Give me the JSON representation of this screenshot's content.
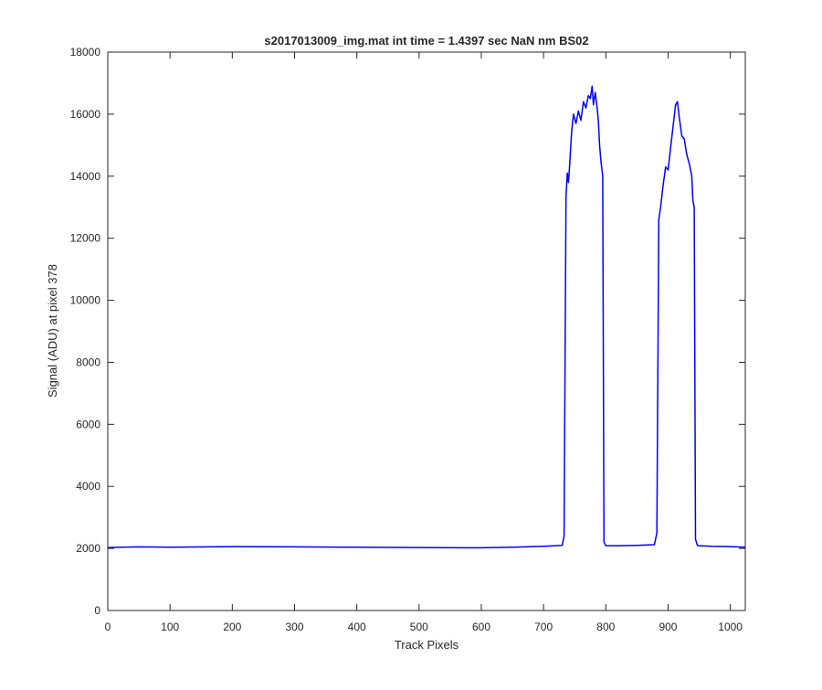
{
  "chart_data": {
    "type": "line",
    "title": "s2017013009_img.mat int time = 1.4397 sec  NaN nm BS02",
    "xlabel": "Track Pixels",
    "ylabel": "Signal (ADU) at pixel 378",
    "xlim": [
      0,
      1024
    ],
    "ylim": [
      0,
      18000
    ],
    "xticks": [
      0,
      100,
      200,
      300,
      400,
      500,
      600,
      700,
      800,
      900,
      1000
    ],
    "yticks": [
      0,
      2000,
      4000,
      6000,
      8000,
      10000,
      12000,
      14000,
      16000,
      18000
    ],
    "grid": false,
    "legend": "none",
    "line_color": "#0000ff",
    "series": [
      {
        "x": [
          0,
          50,
          100,
          200,
          300,
          400,
          500,
          600,
          650,
          700,
          730,
          733,
          736,
          738,
          740,
          742,
          745,
          748,
          752,
          756,
          760,
          764,
          768,
          772,
          775,
          778,
          780,
          783,
          786,
          788,
          790,
          792,
          795,
          797,
          800,
          820,
          850,
          878,
          882,
          885,
          888,
          892,
          896,
          900,
          904,
          908,
          912,
          915,
          918,
          922,
          926,
          930,
          934,
          938,
          940,
          942,
          944,
          947,
          950,
          970,
          1000,
          1024
        ],
        "y": [
          2030,
          2050,
          2040,
          2060,
          2050,
          2040,
          2030,
          2020,
          2040,
          2070,
          2100,
          2400,
          13300,
          14100,
          13800,
          14400,
          15400,
          16000,
          15700,
          16100,
          15800,
          16400,
          16200,
          16600,
          16500,
          16900,
          16300,
          16700,
          16200,
          15800,
          15000,
          14500,
          14000,
          2200,
          2090,
          2090,
          2100,
          2120,
          2500,
          12600,
          13000,
          13700,
          14300,
          14200,
          14900,
          15600,
          16300,
          16400,
          15900,
          15300,
          15200,
          14700,
          14400,
          14000,
          13200,
          13000,
          2300,
          2100,
          2090,
          2070,
          2060,
          2040
        ]
      }
    ]
  }
}
